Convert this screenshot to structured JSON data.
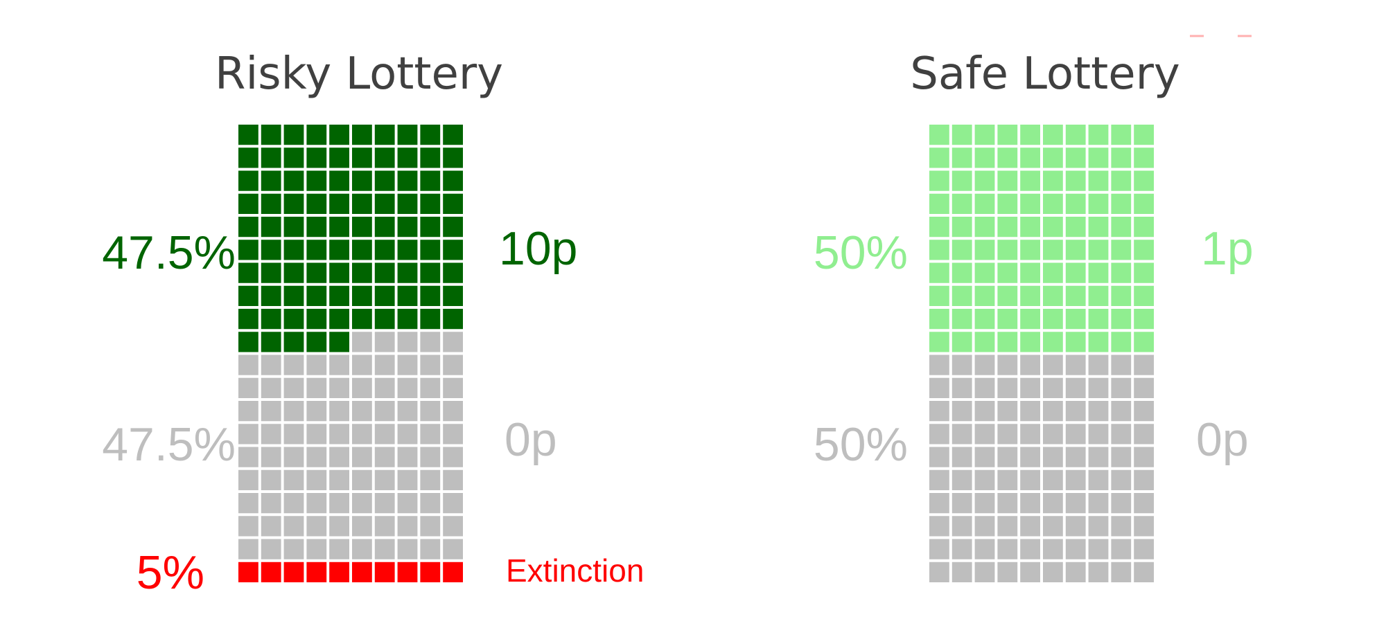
{
  "chart_data": [
    {
      "type": "waffle",
      "title": "Risky Lottery",
      "grid": {
        "columns": 10,
        "rows": 20,
        "total_cells": 200
      },
      "series": [
        {
          "name": "10p",
          "percent_label": "47.5%",
          "value": 47.5,
          "cells": 95,
          "color": "#006400"
        },
        {
          "name": "0p",
          "percent_label": "47.5%",
          "value": 47.5,
          "cells": 95,
          "color": "#bebebe"
        },
        {
          "name": "Extinction",
          "percent_label": "5%",
          "value": 5,
          "cells": 10,
          "color": "#ff0000"
        }
      ]
    },
    {
      "type": "waffle",
      "title": "Safe Lottery",
      "grid": {
        "columns": 10,
        "rows": 20,
        "total_cells": 200
      },
      "series": [
        {
          "name": "1p",
          "percent_label": "50%",
          "value": 50,
          "cells": 100,
          "color": "#90ee90"
        },
        {
          "name": "0p",
          "percent_label": "50%",
          "value": 50,
          "cells": 100,
          "color": "#bebebe"
        }
      ]
    }
  ]
}
